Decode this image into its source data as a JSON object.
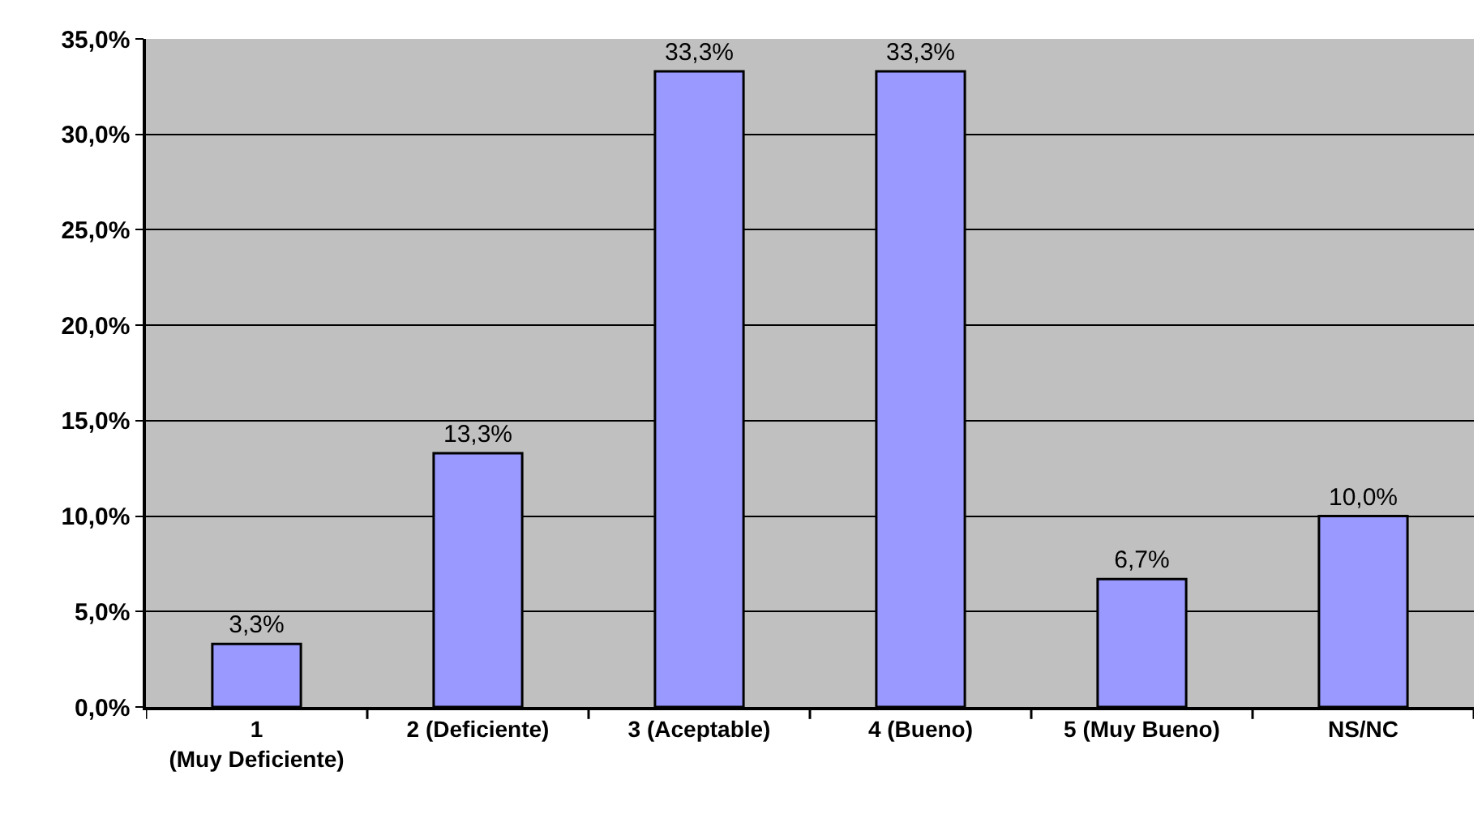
{
  "chart_data": {
    "type": "bar",
    "categories": [
      "1 (Muy Deficiente)",
      "2 (Deficiente)",
      "3 (Aceptable)",
      "4 (Bueno)",
      "5 (Muy Bueno)",
      "NS/NC"
    ],
    "values": [
      3.3,
      13.3,
      33.3,
      33.3,
      6.7,
      10.0
    ],
    "value_labels": [
      "3,3%",
      "13,3%",
      "33,3%",
      "33,3%",
      "6,7%",
      "10,0%"
    ],
    "color": "#9999ff",
    "ylim": [
      0,
      35
    ],
    "yticks": [
      {
        "value": 0,
        "label": "0,0%"
      },
      {
        "value": 5,
        "label": "5,0%"
      },
      {
        "value": 10,
        "label": "10,0%"
      },
      {
        "value": 15,
        "label": "15,0%"
      },
      {
        "value": 20,
        "label": "20,0%"
      },
      {
        "value": 25,
        "label": "25,0%"
      },
      {
        "value": 30,
        "label": "30,0%"
      },
      {
        "value": 35,
        "label": "35,0%"
      }
    ],
    "grid": "y",
    "legend": false
  }
}
